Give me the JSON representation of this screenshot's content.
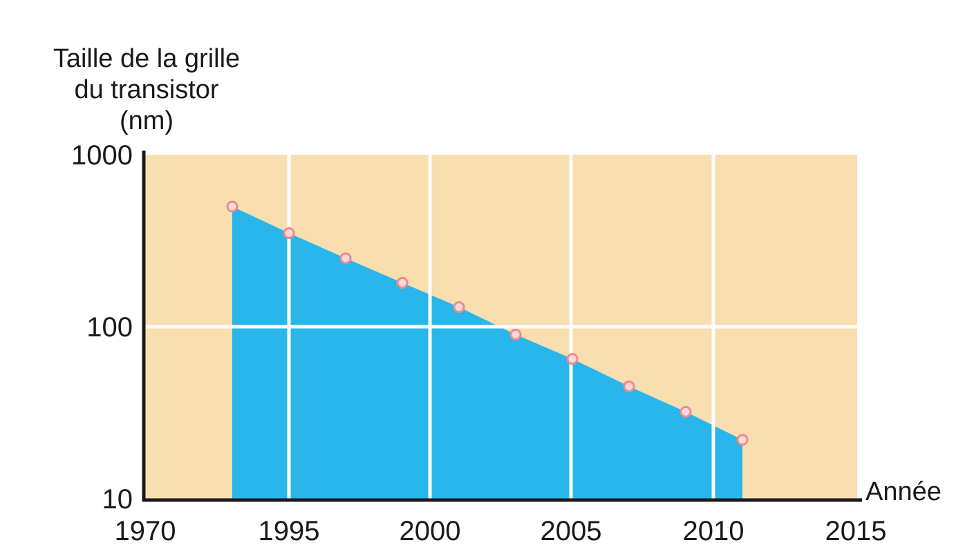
{
  "chart_data": {
    "type": "area",
    "title": "",
    "ylabel_lines": [
      "Taille de la grille",
      "du transistor",
      "(nm)"
    ],
    "xlabel": "Année",
    "yscale": "log",
    "ylim": [
      10,
      1000
    ],
    "y_ticks": [
      "10",
      "100",
      "1000"
    ],
    "x_ticks": [
      "1970",
      "1995",
      "2000",
      "2005",
      "2010",
      "2015"
    ],
    "x": [
      "1993",
      "1995",
      "1997",
      "1999",
      "2001",
      "2003",
      "2005",
      "2007",
      "2009",
      "2011"
    ],
    "values": [
      500,
      350,
      250,
      180,
      130,
      90,
      65,
      45,
      32,
      22
    ],
    "colors": {
      "background": "#f9deb0",
      "area": "#29b6ea",
      "grid": "#ffffff",
      "marker": "#f08a8e",
      "axis": "#1a1a1a"
    }
  }
}
